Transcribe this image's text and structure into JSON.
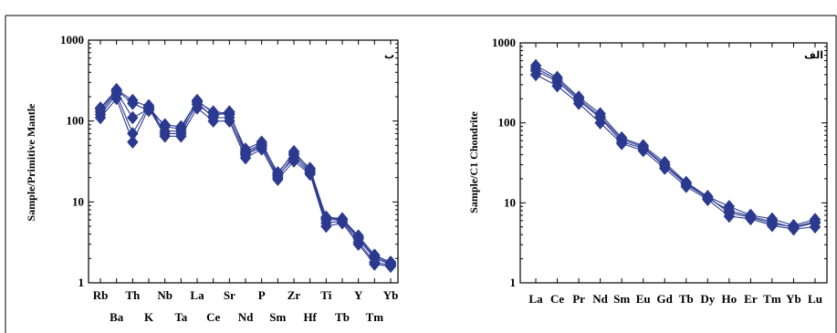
{
  "colors": {
    "series": "#2b3a8f",
    "frame": "#000000"
  },
  "chart_data": [
    {
      "type": "line",
      "panel_tag": "ب",
      "ylabel": "Sample/Primitive Mantle",
      "yscale": "log",
      "ylim": [
        1,
        1000
      ],
      "yticks": [
        "1",
        "10",
        "100",
        "1000"
      ],
      "categories": [
        "Rb",
        "Ba",
        "Th",
        "K",
        "Nb",
        "Ta",
        "La",
        "Ce",
        "Sr",
        "Nd",
        "P",
        "Sm",
        "Zr",
        "Hf",
        "Ti",
        "Tb",
        "Y",
        "Tm",
        "Yb"
      ],
      "series": [
        {
          "values": [
            145,
            245,
            180,
            150,
            85,
            80,
            180,
            125,
            120,
            45,
            55,
            22,
            42,
            25,
            6.5,
            6.2,
            3.8,
            2.2,
            1.8
          ]
        },
        {
          "values": [
            130,
            230,
            110,
            140,
            75,
            75,
            160,
            115,
            130,
            40,
            50,
            20,
            38,
            24,
            6.0,
            6.0,
            3.5,
            2.0,
            1.7
          ]
        },
        {
          "values": [
            110,
            190,
            55,
            145,
            65,
            65,
            145,
            100,
            100,
            35,
            45,
            19,
            32,
            22,
            5.0,
            5.5,
            3.0,
            1.7,
            1.6
          ]
        },
        {
          "values": [
            120,
            215,
            70,
            155,
            70,
            70,
            170,
            110,
            110,
            38,
            48,
            21,
            35,
            23,
            5.5,
            5.8,
            3.2,
            1.8,
            1.65
          ]
        },
        {
          "values": [
            140,
            240,
            165,
            135,
            90,
            85,
            175,
            130,
            125,
            42,
            52,
            23,
            40,
            26,
            6.3,
            6.1,
            3.6,
            2.1,
            1.75
          ]
        }
      ]
    },
    {
      "type": "line",
      "panel_tag": "الف",
      "ylabel": "Sample/C1 Chondrite",
      "yscale": "log",
      "ylim": [
        1,
        1000
      ],
      "yticks": [
        "1",
        "10",
        "100",
        "1000"
      ],
      "categories": [
        "La",
        "Ce",
        "Pr",
        "Nd",
        "Sm",
        "Eu",
        "Gd",
        "Tb",
        "Dy",
        "Ho",
        "Er",
        "Tm",
        "Yb",
        "Lu"
      ],
      "series": [
        {
          "values": [
            520,
            370,
            210,
            130,
            65,
            52,
            32,
            18,
            12,
            9.0,
            7.0,
            6.3,
            5.2,
            6.2
          ]
        },
        {
          "values": [
            450,
            330,
            190,
            115,
            58,
            48,
            29,
            17,
            11.5,
            8.0,
            6.8,
            5.8,
            4.9,
            5.6
          ]
        },
        {
          "values": [
            400,
            290,
            175,
            100,
            55,
            45,
            27,
            16,
            11,
            6.8,
            6.3,
            5.2,
            4.7,
            5.0
          ]
        },
        {
          "values": [
            480,
            350,
            200,
            120,
            62,
            50,
            30,
            17.5,
            12,
            7.5,
            6.6,
            5.5,
            5.0,
            5.8
          ]
        }
      ]
    }
  ]
}
